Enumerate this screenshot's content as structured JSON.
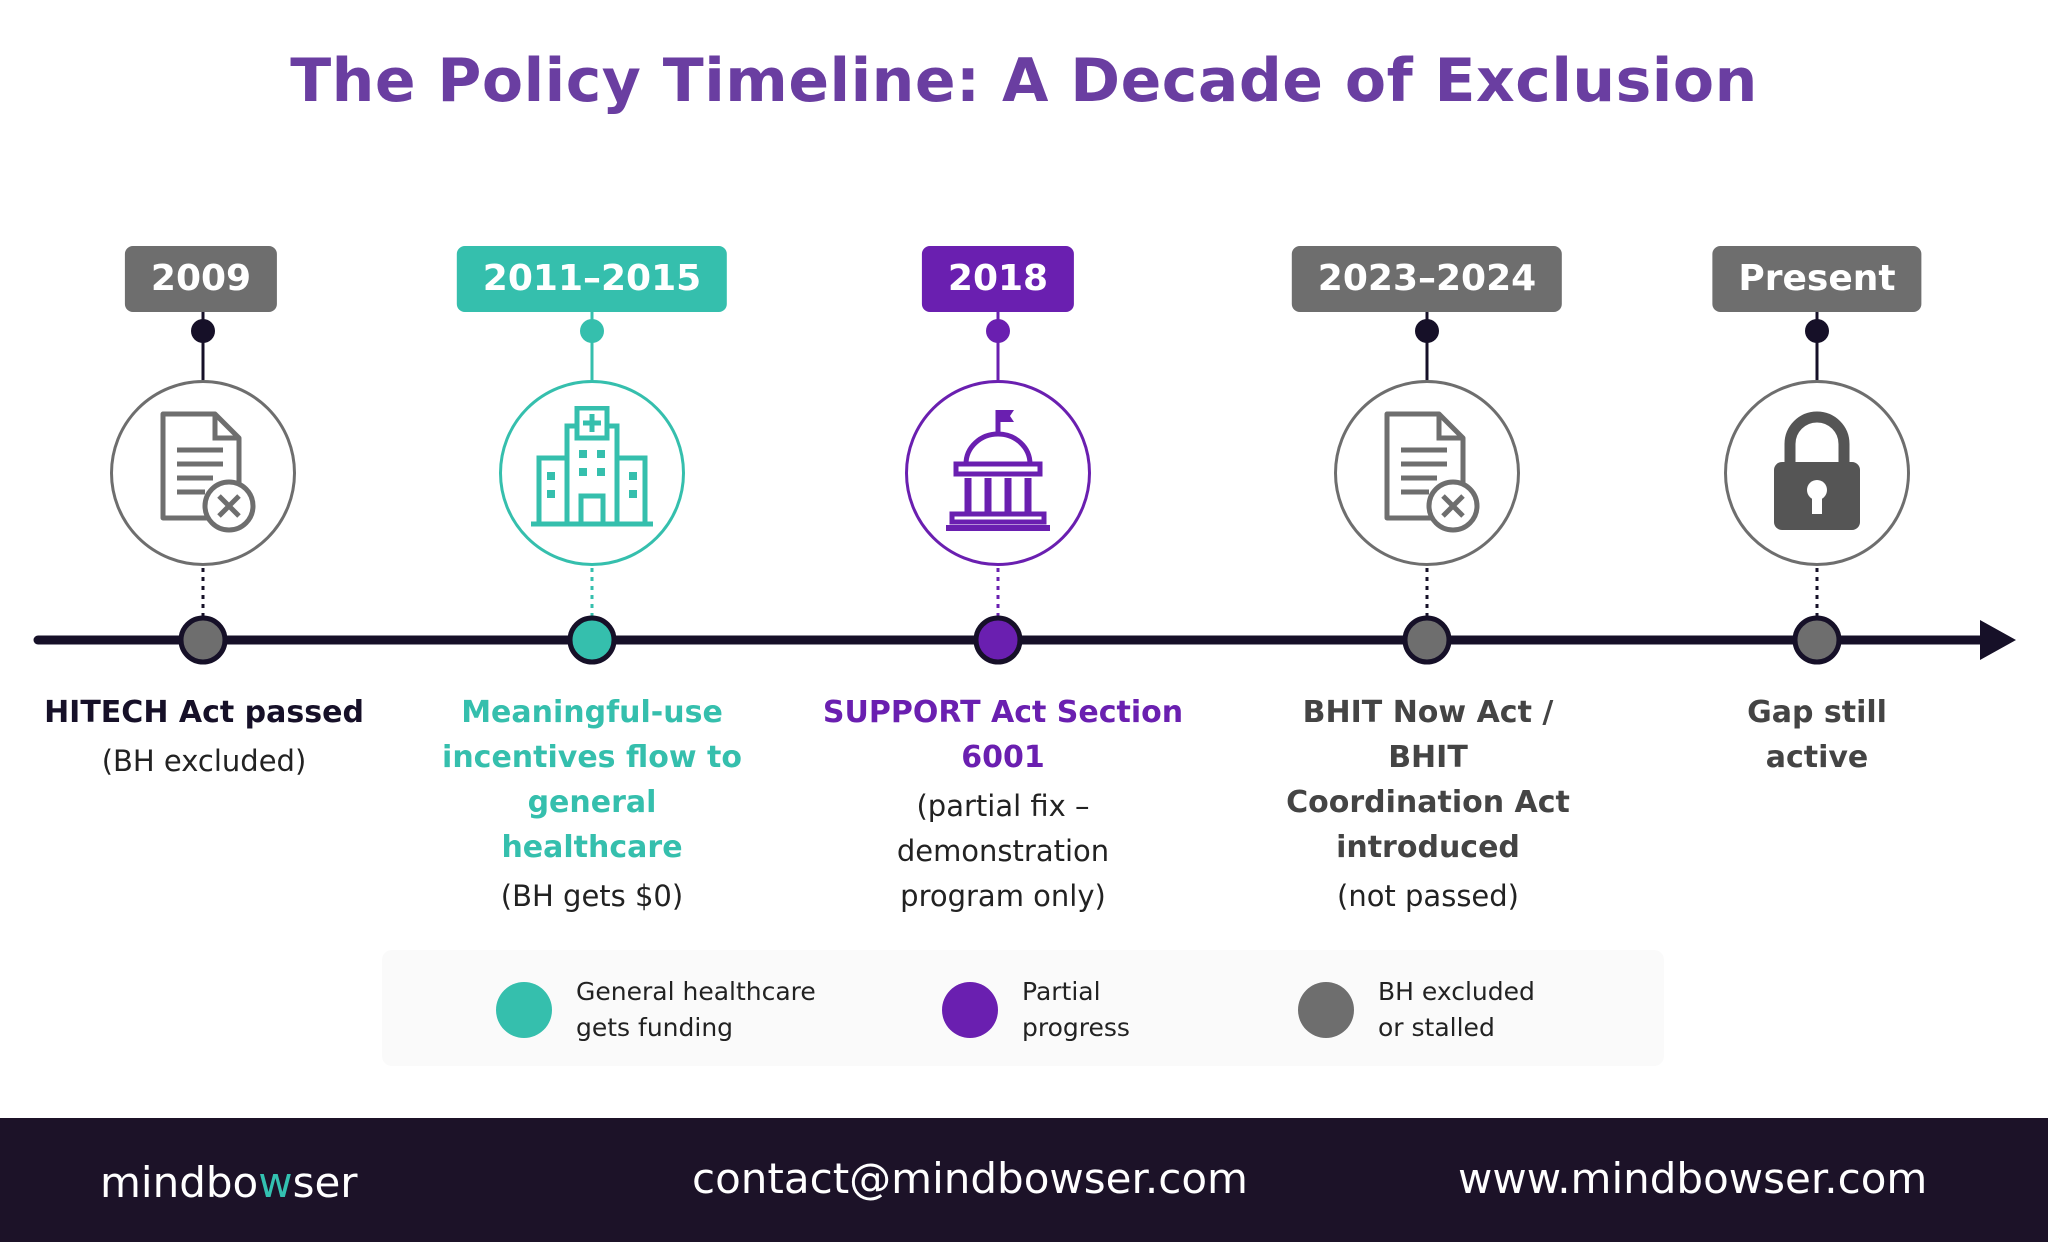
{
  "title": "The Policy Timeline: A Decade of Exclusion",
  "colors": {
    "teal": "#35bfad",
    "purple": "#6a1fb0",
    "gray": "#6e6e6e",
    "axis": "#161028"
  },
  "events": [
    {
      "year": "2009",
      "category": "bh-excluded",
      "icon": "document-x-icon",
      "title": "HITECH Act passed",
      "detail": "(BH excluded)"
    },
    {
      "year": "2011–2015",
      "category": "general-funding",
      "icon": "hospital-icon",
      "title": "Meaningful-use incentives flow to general healthcare",
      "detail": "(BH gets $0)"
    },
    {
      "year": "2018",
      "category": "partial-progress",
      "icon": "capitol-icon",
      "title": "SUPPORT Act Section 6001",
      "detail": "(partial fix – demonstration program only)"
    },
    {
      "year": "2023–2024",
      "category": "bh-excluded",
      "icon": "document-x-icon",
      "title": "BHIT Now Act / BHIT Coordination Act introduced",
      "detail": "(not passed)"
    },
    {
      "year": "Present",
      "category": "bh-excluded",
      "icon": "lock-icon",
      "title": "Gap still active",
      "detail": ""
    }
  ],
  "legend": [
    {
      "label": "General healthcare gets funding",
      "color": "#35bfad"
    },
    {
      "label": "Partial progress",
      "color": "#6a1fb0"
    },
    {
      "label": "BH excluded or stalled",
      "color": "#6e6e6e"
    }
  ],
  "footer": {
    "brand_prefix": "mindbo",
    "brand_accent": "w",
    "brand_suffix": "ser",
    "email": "contact@mindbowser.com",
    "website": "www.mindbowser.com"
  }
}
